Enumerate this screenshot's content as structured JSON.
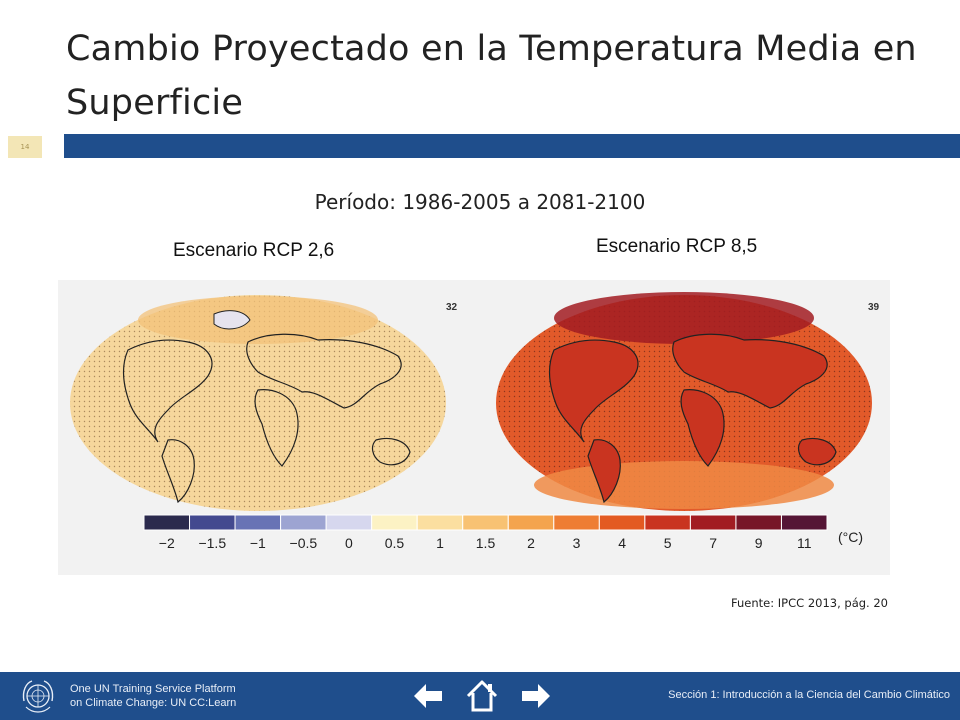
{
  "slide": {
    "title": "Cambio Proyectado en la Temperatura Media en Superficie",
    "page_number": "14",
    "period": "Período: 1986-2005 a 2081-2100",
    "scenario_left": "Escenario RCP 2,6",
    "scenario_right": "Escenario RCP 8,5",
    "source": "Fuente: IPCC 2013, pág. 20"
  },
  "figure": {
    "map_left_count": "32",
    "map_right_count": "39",
    "unit": "(°C)",
    "colorbar_labels": [
      "−2",
      "−1.5",
      "−1",
      "−0.5",
      "0",
      "0.5",
      "1",
      "1.5",
      "2",
      "3",
      "4",
      "5",
      "7",
      "9",
      "11"
    ],
    "colorbar_colors": [
      "#2b2a4d",
      "#43498f",
      "#6873b5",
      "#9da4d2",
      "#d6d7ee",
      "#fcf2c4",
      "#fbdfa0",
      "#f8c273",
      "#f4a44e",
      "#ee7d33",
      "#e35a22",
      "#c93420",
      "#a21c22",
      "#771628",
      "#551535"
    ],
    "left_map_color": "#f6d79c",
    "right_map_color": "#e25a2a"
  },
  "footer": {
    "platform_line1": "One UN Training Service Platform",
    "platform_line2": "on Climate Change: UN CC:Learn",
    "section": "Sección 1: Introducción a la Ciencia del Cambio Climático",
    "accent": "#1f4e8c"
  }
}
